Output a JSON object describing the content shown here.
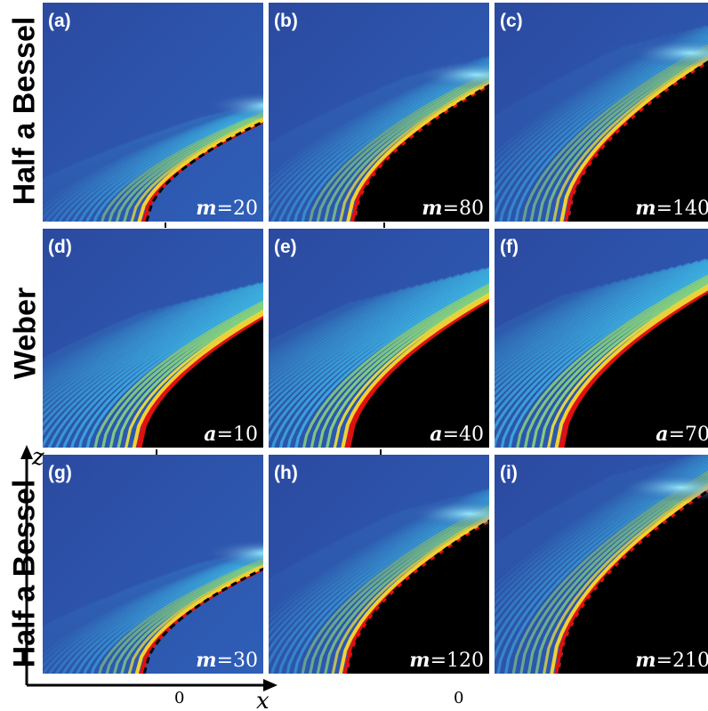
{
  "row_labels": [
    "Half a Bessel",
    "Weber",
    "Half a Bessel"
  ],
  "panels": [
    {
      "tag": "(a)",
      "param_var": "m",
      "param_val": "=20",
      "scale": 0.45,
      "dashed": true
    },
    {
      "tag": "(b)",
      "param_var": "m",
      "param_val": "=80",
      "scale": 0.8,
      "dashed": true
    },
    {
      "tag": "(c)",
      "param_var": "m",
      "param_val": "=140",
      "scale": 1.05,
      "dashed": true
    },
    {
      "tag": "(d)",
      "param_var": "a",
      "param_val": "=10",
      "scale": 0.6,
      "dashed": false
    },
    {
      "tag": "(e)",
      "param_var": "a",
      "param_val": "=40",
      "scale": 0.95,
      "dashed": false
    },
    {
      "tag": "(f)",
      "param_var": "a",
      "param_val": "=70",
      "scale": 1.2,
      "dashed": false
    },
    {
      "tag": "(g)",
      "param_var": "m",
      "param_val": "=30",
      "scale": 0.5,
      "dashed": true
    },
    {
      "tag": "(h)",
      "param_var": "m",
      "param_val": "=120",
      "scale": 0.95,
      "dashed": true
    },
    {
      "tag": "(i)",
      "param_var": "m",
      "param_val": "=210",
      "scale": 1.25,
      "dashed": true
    }
  ],
  "axes": {
    "x_label": "x",
    "z_label": "z",
    "x_ticks": [
      "0",
      "0"
    ]
  },
  "colors": {
    "background": "#2a4fa8",
    "shadow": "#000000",
    "caustic": "#e01010"
  }
}
